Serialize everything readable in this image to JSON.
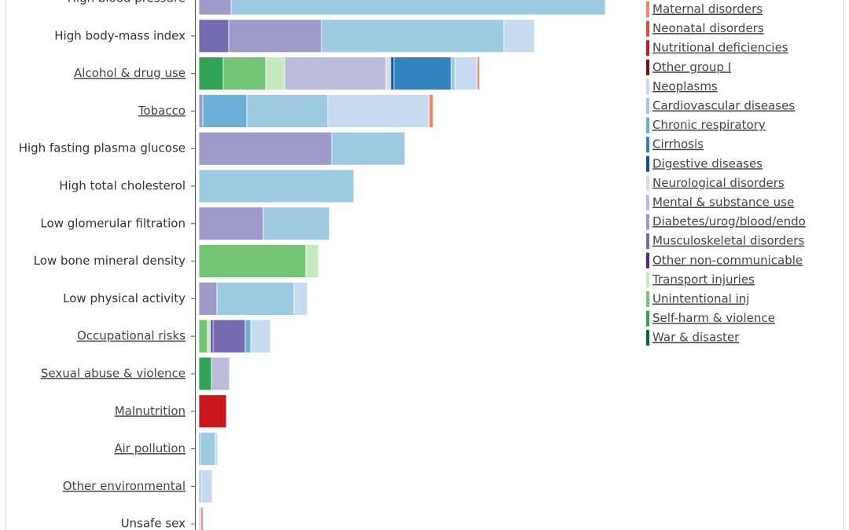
{
  "chart_data": {
    "type": "bar",
    "orientation": "horizontal",
    "stacked": true,
    "xlim": [
      0,
      600
    ],
    "categories": [
      "High blood pressure",
      "High body-mass index",
      "Alcohol & drug use",
      "Tobacco",
      "High fasting plasma glucose",
      "High total cholesterol",
      "Low glomerular filtration",
      "Low bone mineral density",
      "Low physical activity",
      "Occupational risks",
      "Sexual abuse & violence",
      "Malnutrition",
      "Air pollution",
      "Other environmental",
      "Unsafe sex"
    ],
    "series": [
      {
        "name": "Maternal disorders",
        "color": "#f08466",
        "values": [
          0,
          0,
          3,
          5,
          0,
          0,
          0,
          0,
          0,
          0,
          0,
          0,
          0,
          0,
          0
        ]
      },
      {
        "name": "Neonatal disorders",
        "color": "#de4a3c",
        "values": [
          0,
          0,
          0,
          0,
          0,
          0,
          0,
          0,
          0,
          0,
          0,
          0,
          0,
          0,
          2
        ]
      },
      {
        "name": "Nutritional deficiencies",
        "color": "#cb181d",
        "values": [
          0,
          0,
          0,
          0,
          0,
          0,
          0,
          0,
          0,
          0,
          0,
          35,
          0,
          0,
          0
        ]
      },
      {
        "name": "Other group I",
        "color": "#7f0a10",
        "values": [
          0,
          0,
          0,
          0,
          0,
          0,
          0,
          0,
          0,
          0,
          0,
          0,
          0,
          0,
          0
        ]
      },
      {
        "name": "Neoplasms",
        "color": "#c6dbef",
        "values": [
          0,
          39,
          28,
          129,
          0,
          0,
          0,
          0,
          17,
          25,
          0,
          0,
          3,
          14,
          3
        ]
      },
      {
        "name": "Cardiovascular diseases",
        "color": "#9ecae1",
        "values": [
          476,
          232,
          5,
          103,
          93,
          197,
          84,
          0,
          98,
          0,
          0,
          0,
          19,
          3,
          0
        ]
      },
      {
        "name": "Chronic respiratory",
        "color": "#6baed6",
        "values": [
          0,
          0,
          0,
          56,
          0,
          0,
          0,
          0,
          0,
          7,
          0,
          0,
          2,
          0,
          0
        ]
      },
      {
        "name": "Cirrhosis",
        "color": "#3182bd",
        "values": [
          0,
          0,
          73,
          0,
          0,
          0,
          0,
          0,
          0,
          0,
          0,
          0,
          0,
          0,
          0
        ]
      },
      {
        "name": "Digestive diseases",
        "color": "#08519c",
        "values": [
          0,
          0,
          4,
          0,
          0,
          0,
          0,
          0,
          0,
          0,
          0,
          0,
          0,
          0,
          0
        ]
      },
      {
        "name": "Neurological disorders",
        "color": "#dadaeb",
        "values": [
          0,
          0,
          6,
          0,
          0,
          0,
          0,
          0,
          0,
          0,
          0,
          0,
          0,
          0,
          0
        ]
      },
      {
        "name": "Mental & substance use",
        "color": "#bcbddc",
        "values": [
          0,
          0,
          129,
          0,
          0,
          0,
          0,
          0,
          0,
          0,
          23,
          0,
          0,
          0,
          0
        ]
      },
      {
        "name": "Diabetes/urog/blood/endo",
        "color": "#9e9ac8",
        "values": [
          41,
          118,
          0,
          5,
          169,
          0,
          82,
          0,
          23,
          0,
          0,
          0,
          0,
          0,
          0
        ]
      },
      {
        "name": "Musculoskeletal disorders",
        "color": "#756bb1",
        "values": [
          0,
          38,
          0,
          0,
          0,
          0,
          0,
          0,
          0,
          41,
          0,
          0,
          0,
          0,
          0
        ]
      },
      {
        "name": "Other non-communicable",
        "color": "#54278f",
        "values": [
          0,
          0,
          0,
          0,
          0,
          0,
          0,
          0,
          0,
          3,
          0,
          0,
          0,
          0,
          0
        ]
      },
      {
        "name": "Transport injuries",
        "color": "#c7e9c0",
        "values": [
          0,
          0,
          24,
          0,
          0,
          0,
          0,
          16,
          0,
          4,
          0,
          0,
          0,
          0,
          0
        ]
      },
      {
        "name": "Unintentional inj",
        "color": "#74c476",
        "values": [
          0,
          0,
          54,
          0,
          0,
          0,
          0,
          136,
          0,
          11,
          0,
          0,
          0,
          0,
          0
        ]
      },
      {
        "name": "Self-harm & violence",
        "color": "#31a354",
        "values": [
          0,
          0,
          31,
          0,
          0,
          0,
          0,
          0,
          0,
          0,
          16,
          0,
          0,
          0,
          0
        ]
      },
      {
        "name": "War & disaster",
        "color": "#006d2c",
        "values": [
          0,
          0,
          0,
          0,
          0,
          0,
          0,
          0,
          0,
          0,
          0,
          0,
          0,
          0,
          0
        ]
      }
    ]
  }
}
